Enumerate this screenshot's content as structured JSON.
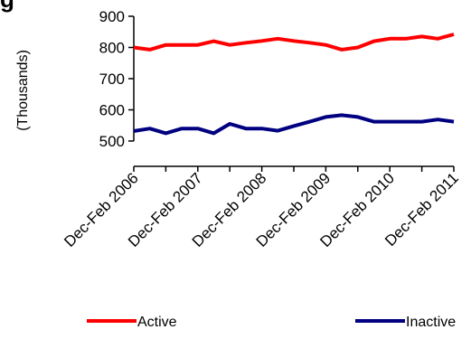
{
  "heading_fragment": "g",
  "chart_data": {
    "type": "line",
    "title": "",
    "xlabel": "",
    "ylabel": "(Thousands)",
    "ylim": [
      500,
      900
    ],
    "yticks": [
      500,
      600,
      700,
      800,
      900
    ],
    "grid": false,
    "legend_position": "bottom",
    "x_tick_labels": [
      "Dec-Feb 2006",
      "Dec-Feb 2007",
      "Dec-Feb 2008",
      "Dec-Feb 2009",
      "Dec-Feb 2010",
      "Dec-Feb 2011"
    ],
    "series": [
      {
        "name": "Active",
        "color": "#ff0000",
        "values": [
          800,
          793,
          808,
          808,
          808,
          820,
          808,
          815,
          821,
          828,
          821,
          815,
          808,
          793,
          800,
          820,
          828,
          828,
          835,
          828,
          842
        ]
      },
      {
        "name": "Inactive",
        "color": "#000080",
        "values": [
          532,
          540,
          525,
          540,
          540,
          525,
          555,
          540,
          540,
          533,
          548,
          562,
          577,
          583,
          577,
          562,
          562,
          562,
          562,
          569,
          562
        ]
      }
    ]
  }
}
